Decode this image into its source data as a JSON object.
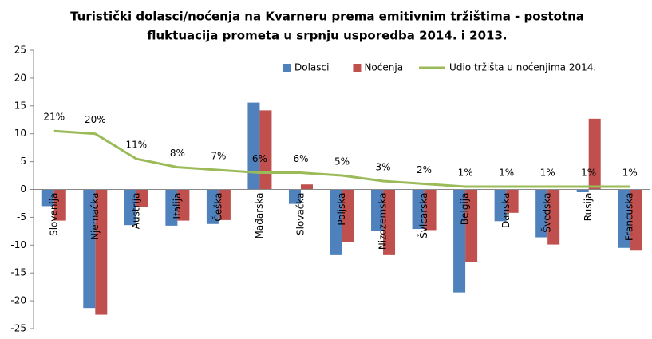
{
  "chart_data": {
    "type": "bar",
    "title": [
      "Turistički dolasci/noćenja na Kvarneru prema emitivnim tržištima - postotna",
      "fluktuacija prometa u srpnju usporedba 2014. i 2013."
    ],
    "categories": [
      "Slovenija",
      "Njemačka",
      "Austrija",
      "Italija",
      "Češka",
      "Mađarska",
      "Slovačka",
      "Poljska",
      "Nizozemska",
      "Švicarska",
      "Belgija",
      "Danska",
      "Švedska",
      "Rusija",
      "Francuska"
    ],
    "series": [
      {
        "name": "Dolasci",
        "color": "#4f81bd",
        "values": [
          -3,
          -21.3,
          -6.4,
          -6.5,
          -6.2,
          15.6,
          -2.6,
          -11.8,
          -7.5,
          -7.1,
          -18.5,
          -5.7,
          -8.6,
          -0.5,
          -10.5
        ]
      },
      {
        "name": "Noćenja",
        "color": "#c0504d",
        "values": [
          -5.6,
          -22.5,
          -3.1,
          -5.6,
          -5.5,
          14.2,
          0.9,
          -9.5,
          -11.8,
          -7.3,
          -13,
          -4.2,
          -9.9,
          12.7,
          -11
        ]
      },
      {
        "name": "Udio tržišta  u noćenjima 2014.",
        "color": "#9bbb59",
        "type": "line",
        "axis": "y2",
        "values": [
          21,
          20,
          11,
          8,
          7,
          6,
          6,
          5,
          3,
          2,
          1,
          1,
          1,
          1,
          1
        ],
        "value_labels": [
          "21%",
          "20%",
          "11%",
          "8%",
          "7%",
          "6%",
          "6%",
          "5%",
          "3%",
          "2%",
          "1%",
          "1%",
          "1%",
          "1%",
          "1%"
        ]
      }
    ],
    "ylim": [
      -25,
      25
    ],
    "yticks": [
      -25,
      -20,
      -15,
      -10,
      -5,
      0,
      5,
      10,
      15,
      20,
      25
    ],
    "y2lim": [
      -50,
      50
    ],
    "grid": false,
    "legend": "top"
  }
}
